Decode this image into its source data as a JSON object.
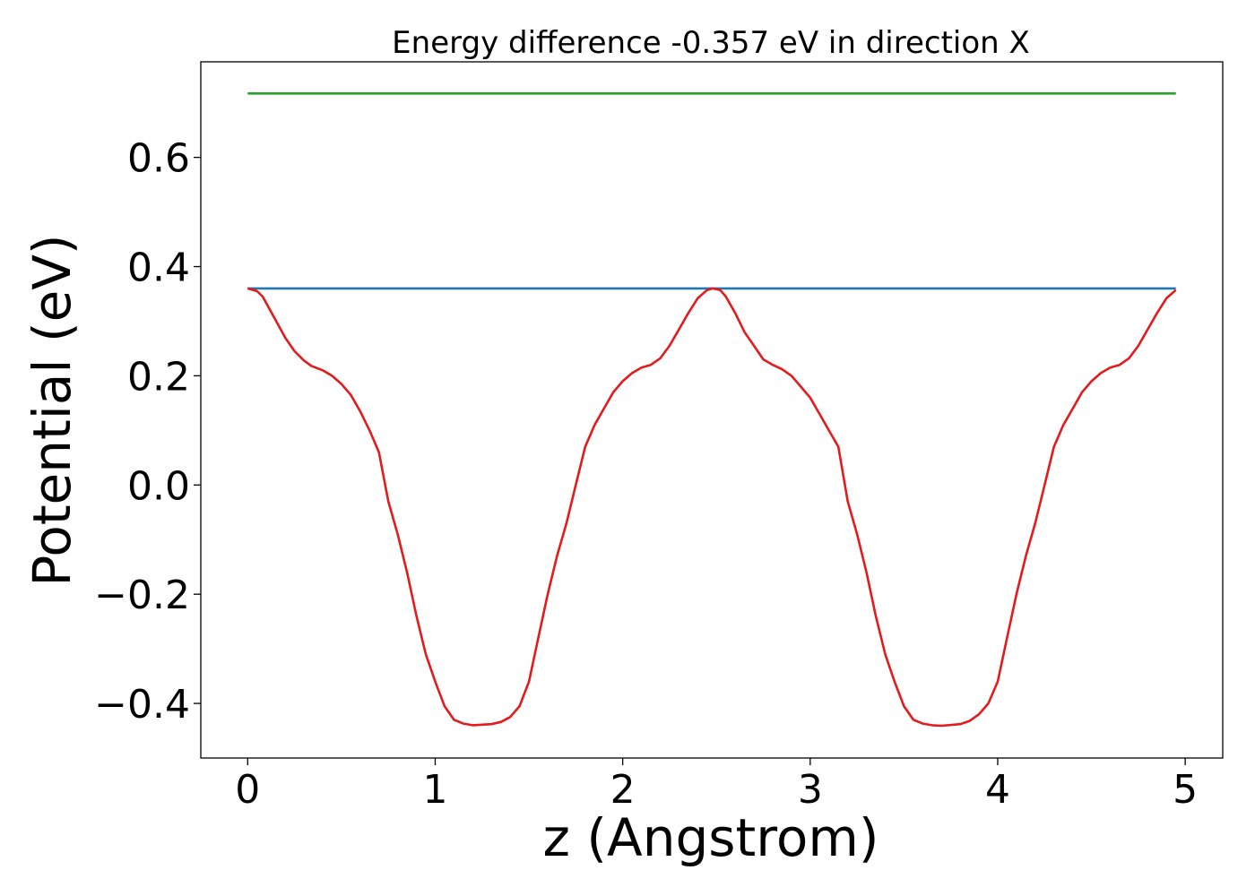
{
  "chart_data": {
    "type": "line",
    "title": "Energy difference -0.357 eV in direction X",
    "xlabel": "z (Angstrom)",
    "ylabel": "Potential (eV)",
    "xlim": [
      -0.25,
      5.2
    ],
    "ylim": [
      -0.5,
      0.775
    ],
    "xticks": [
      0,
      1,
      2,
      3,
      4,
      5
    ],
    "xtick_labels": [
      "0",
      "1",
      "2",
      "3",
      "4",
      "5"
    ],
    "yticks": [
      -0.4,
      -0.2,
      0.0,
      0.2,
      0.4,
      0.6
    ],
    "ytick_labels": [
      "−0.4",
      "−0.2",
      "0.0",
      "0.2",
      "0.4",
      "0.6"
    ],
    "grid": false,
    "series": [
      {
        "color": "#2ca02c",
        "x": [
          0,
          4.95
        ],
        "y": [
          0.717,
          0.717
        ]
      },
      {
        "color": "#1f77b4",
        "x": [
          0,
          4.95
        ],
        "y": [
          0.36,
          0.36
        ]
      },
      {
        "color": "#e41a1c",
        "x": [
          0,
          0.05,
          0.08,
          0.12,
          0.16,
          0.2,
          0.25,
          0.3,
          0.34,
          0.4,
          0.45,
          0.5,
          0.55,
          0.6,
          0.65,
          0.7,
          0.75,
          0.8,
          0.85,
          0.9,
          0.95,
          1.0,
          1.05,
          1.1,
          1.15,
          1.2,
          1.3,
          1.35,
          1.4,
          1.45,
          1.5,
          1.55,
          1.6,
          1.65,
          1.7,
          1.75,
          1.8,
          1.85,
          1.9,
          1.95,
          2.0,
          2.05,
          2.1,
          2.15,
          2.2,
          2.25,
          2.3,
          2.35,
          2.4,
          2.45,
          2.48,
          2.52,
          2.55,
          2.6,
          2.65,
          2.7,
          2.75,
          2.8,
          2.85,
          2.9,
          2.95,
          3.0,
          3.05,
          3.1,
          3.15,
          3.2,
          3.25,
          3.3,
          3.35,
          3.4,
          3.45,
          3.5,
          3.55,
          3.6,
          3.65,
          3.7,
          3.8,
          3.85,
          3.9,
          3.95,
          4.0,
          4.05,
          4.1,
          4.15,
          4.2,
          4.25,
          4.3,
          4.35,
          4.4,
          4.45,
          4.5,
          4.55,
          4.6,
          4.65,
          4.7,
          4.75,
          4.8,
          4.85,
          4.9,
          4.95
        ],
        "y": [
          0.36,
          0.355,
          0.345,
          0.32,
          0.295,
          0.27,
          0.245,
          0.228,
          0.218,
          0.21,
          0.2,
          0.185,
          0.165,
          0.135,
          0.1,
          0.06,
          -0.03,
          -0.09,
          -0.16,
          -0.24,
          -0.31,
          -0.36,
          -0.405,
          -0.43,
          -0.437,
          -0.44,
          -0.438,
          -0.434,
          -0.425,
          -0.405,
          -0.36,
          -0.28,
          -0.2,
          -0.13,
          -0.07,
          0.0,
          0.07,
          0.11,
          0.14,
          0.17,
          0.19,
          0.205,
          0.215,
          0.22,
          0.232,
          0.255,
          0.285,
          0.315,
          0.342,
          0.357,
          0.36,
          0.357,
          0.345,
          0.315,
          0.28,
          0.255,
          0.23,
          0.22,
          0.212,
          0.2,
          0.18,
          0.16,
          0.13,
          0.1,
          0.07,
          -0.03,
          -0.09,
          -0.16,
          -0.24,
          -0.31,
          -0.36,
          -0.405,
          -0.43,
          -0.437,
          -0.44,
          -0.441,
          -0.438,
          -0.432,
          -0.42,
          -0.4,
          -0.36,
          -0.28,
          -0.2,
          -0.13,
          -0.07,
          0.0,
          0.07,
          0.11,
          0.14,
          0.17,
          0.19,
          0.205,
          0.215,
          0.22,
          0.232,
          0.255,
          0.285,
          0.315,
          0.342,
          0.357
        ]
      }
    ]
  }
}
